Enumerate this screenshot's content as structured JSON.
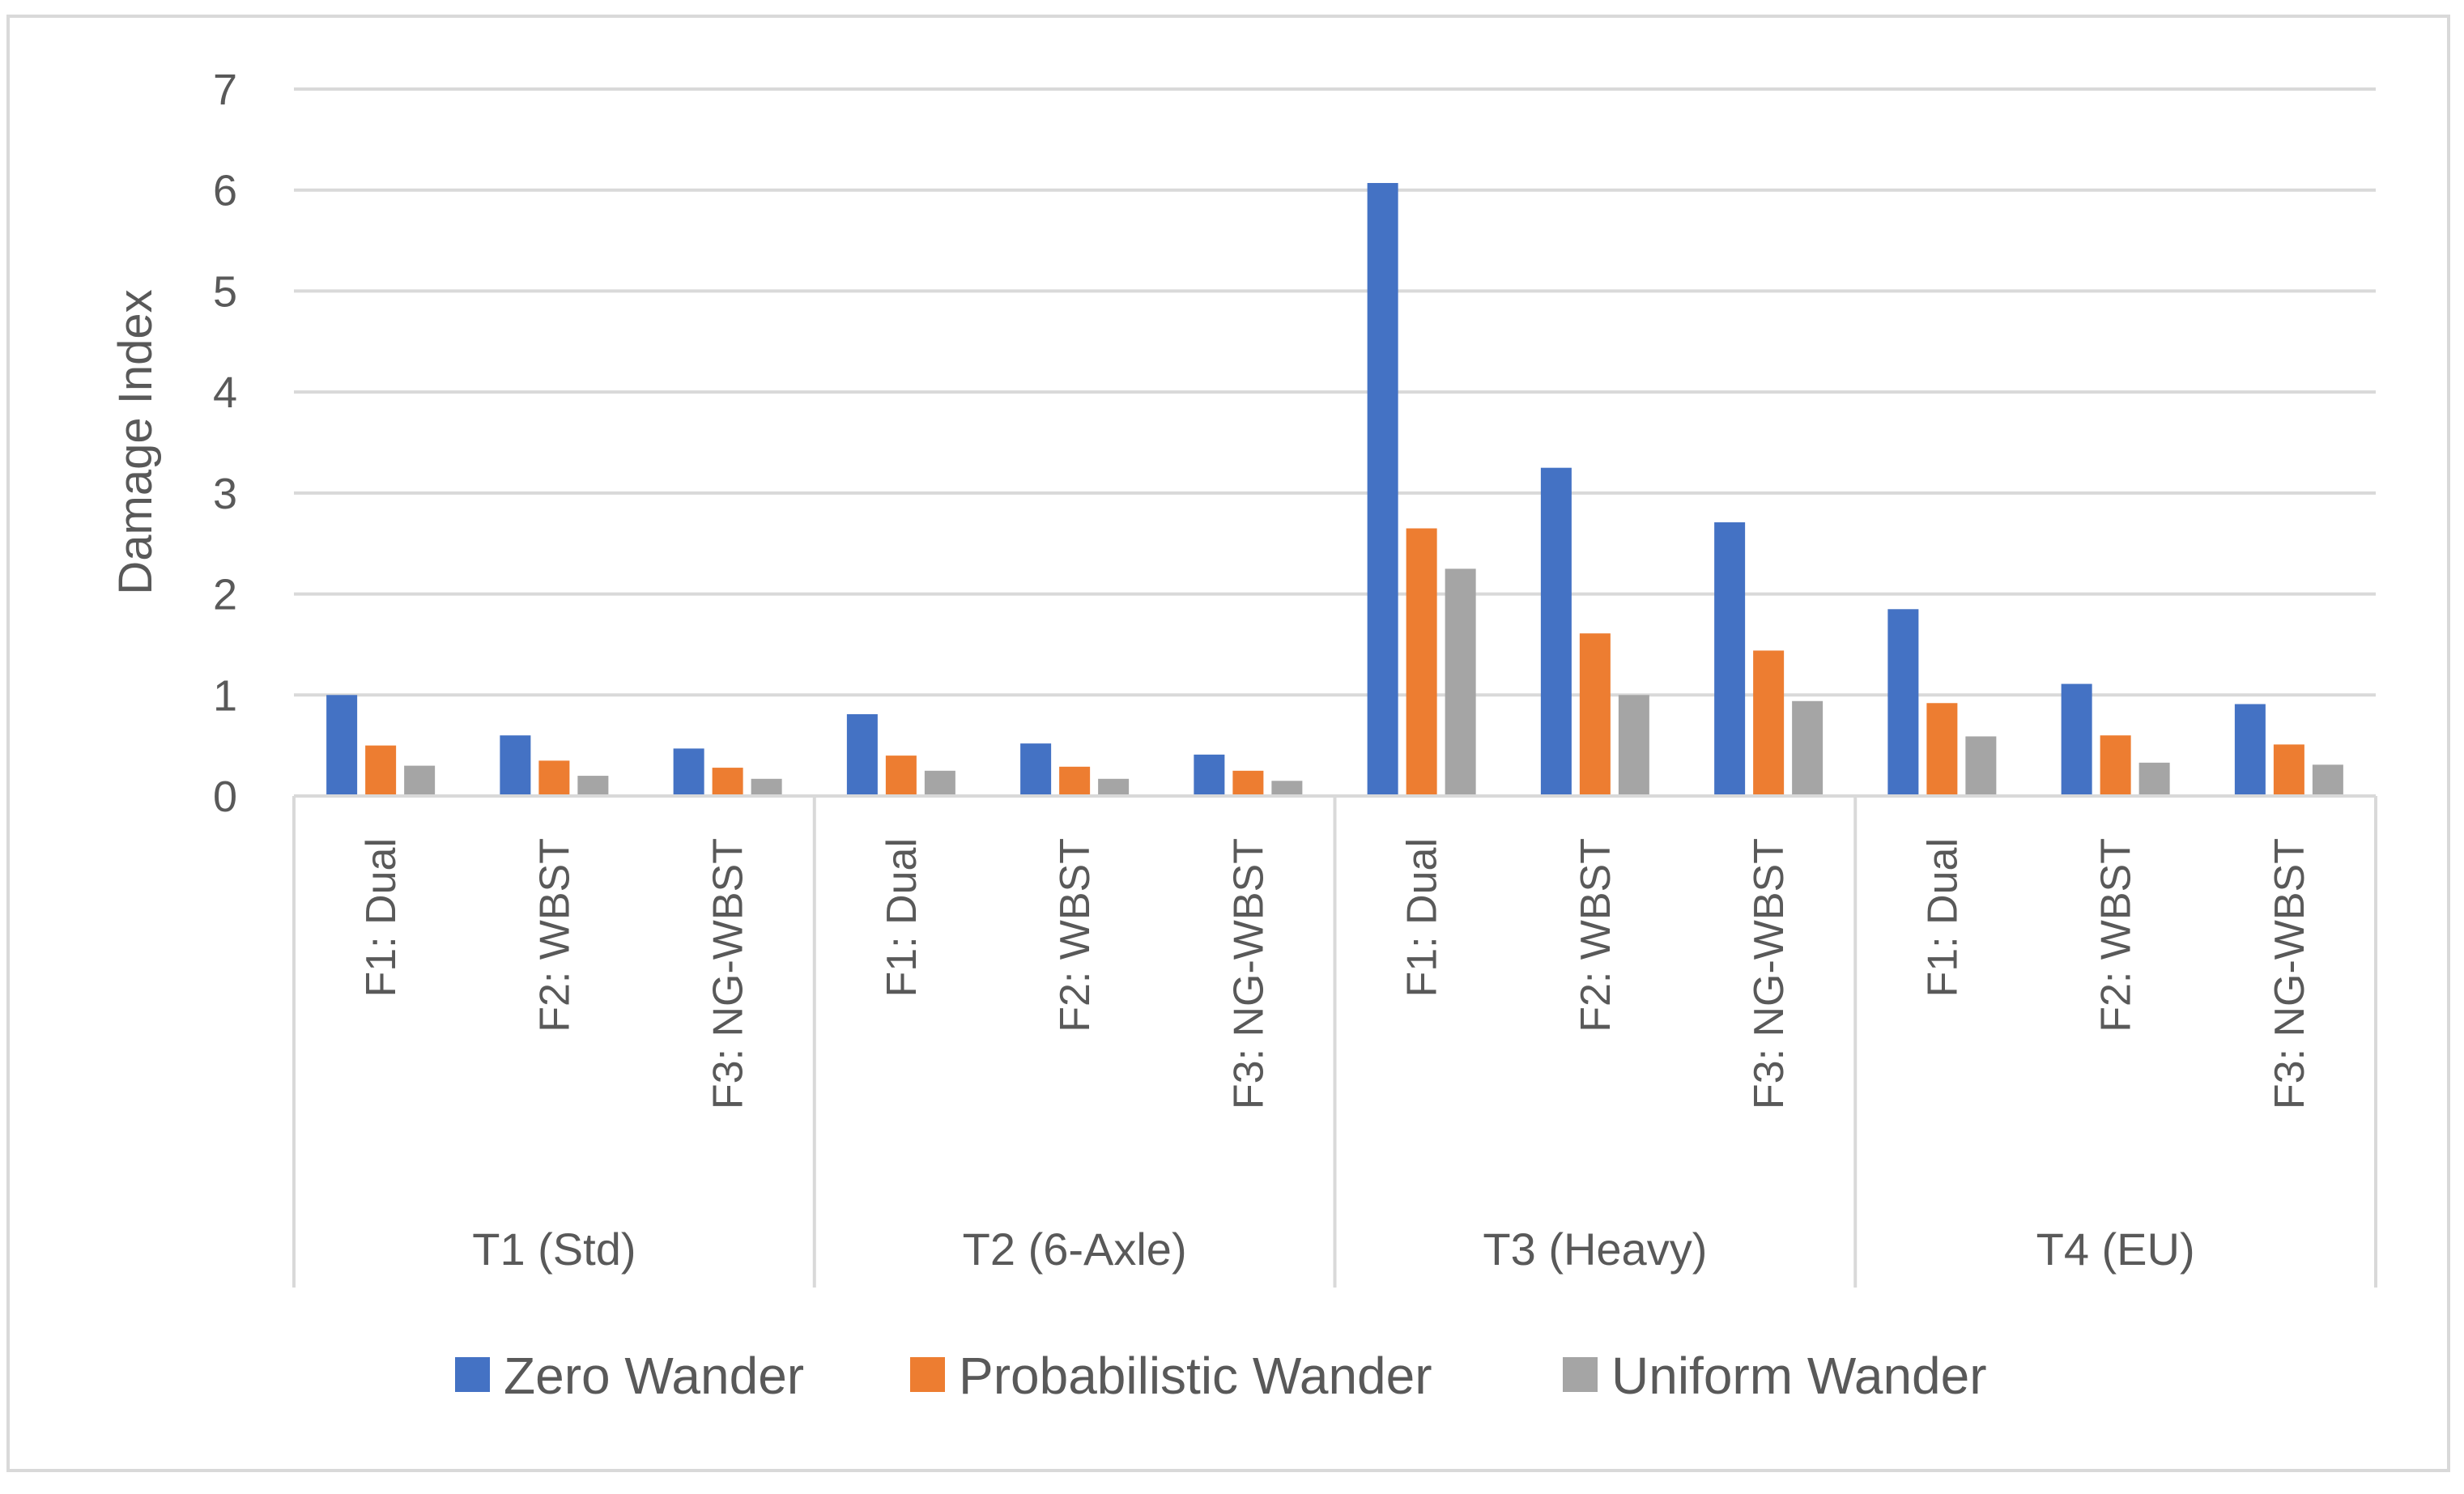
{
  "chart_data": {
    "type": "bar",
    "ylabel": "Damage Index",
    "ylim": [
      0,
      7
    ],
    "yticks": [
      0,
      1,
      2,
      3,
      4,
      5,
      6,
      7
    ],
    "grid": true,
    "legend_position": "bottom",
    "groups": [
      {
        "label": "T1 (Std)",
        "categories": [
          "F1: Dual",
          "F2: WBST",
          "F3: NG-WBST"
        ]
      },
      {
        "label": "T2 (6-Axle)",
        "categories": [
          "F1: Dual",
          "F2: WBST",
          "F3: NG-WBST"
        ]
      },
      {
        "label": "T3 (Heavy)",
        "categories": [
          "F1: Dual",
          "F2: WBST",
          "F3: NG-WBST"
        ]
      },
      {
        "label": "T4 (EU)",
        "categories": [
          "F1: Dual",
          "F2: WBST",
          "F3: NG-WBST"
        ]
      }
    ],
    "series": [
      {
        "name": "Zero Wander",
        "color": "#4472c4",
        "values": [
          1.0,
          0.6,
          0.47,
          0.81,
          0.52,
          0.41,
          6.07,
          3.25,
          2.71,
          1.85,
          1.11,
          0.91
        ]
      },
      {
        "name": "Probabilistic Wander",
        "color": "#ed7d31",
        "values": [
          0.5,
          0.35,
          0.28,
          0.4,
          0.29,
          0.25,
          2.65,
          1.61,
          1.44,
          0.92,
          0.6,
          0.51
        ]
      },
      {
        "name": "Uniform Wander",
        "color": "#a5a5a5",
        "values": [
          0.3,
          0.2,
          0.17,
          0.25,
          0.17,
          0.15,
          2.25,
          1.0,
          0.94,
          0.59,
          0.33,
          0.31
        ]
      }
    ]
  }
}
